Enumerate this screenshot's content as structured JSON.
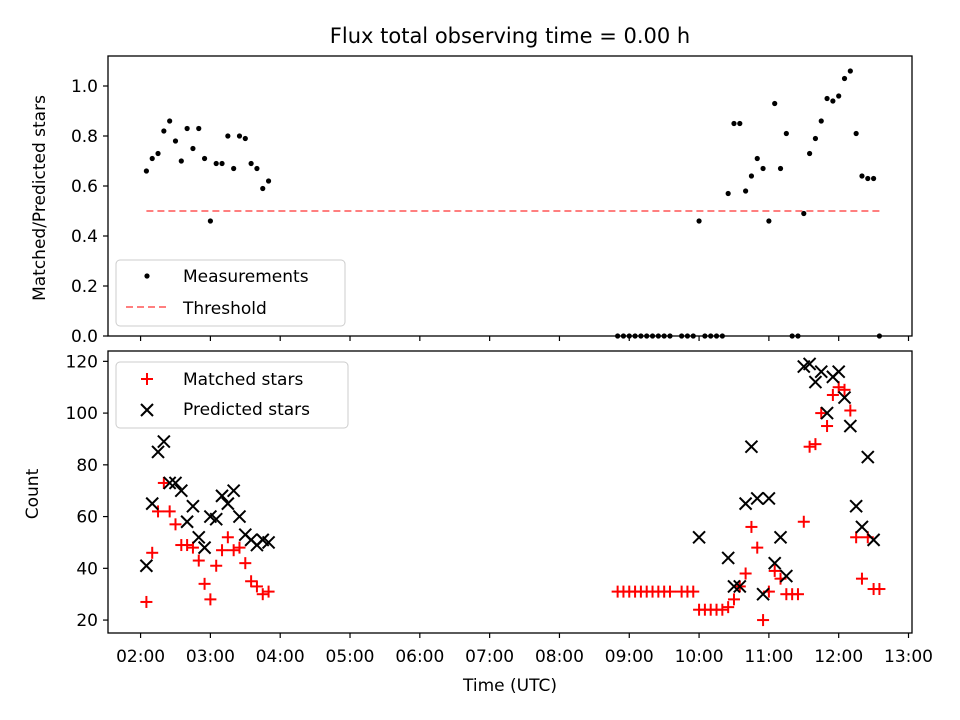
{
  "chart_data": [
    {
      "type": "scatter",
      "title": "Flux total observing time = 0.00 h",
      "xlabel": "",
      "ylabel": "Matched/Predicted stars",
      "ylim": [
        0,
        1.12
      ],
      "yticks": [
        "0.0",
        "0.2",
        "0.4",
        "0.6",
        "0.8",
        "1.0"
      ],
      "legend_placement": "lower-left",
      "series": [
        {
          "name": "Measurements",
          "marker": "dot",
          "color": "#000000",
          "points": [
            [
              "02:05",
              0.66
            ],
            [
              "02:10",
              0.71
            ],
            [
              "02:15",
              0.73
            ],
            [
              "02:20",
              0.82
            ],
            [
              "02:25",
              0.86
            ],
            [
              "02:30",
              0.78
            ],
            [
              "02:35",
              0.7
            ],
            [
              "02:40",
              0.83
            ],
            [
              "02:45",
              0.75
            ],
            [
              "02:50",
              0.83
            ],
            [
              "02:55",
              0.71
            ],
            [
              "03:00",
              0.46
            ],
            [
              "03:05",
              0.69
            ],
            [
              "03:10",
              0.69
            ],
            [
              "03:15",
              0.8
            ],
            [
              "03:20",
              0.67
            ],
            [
              "03:25",
              0.8
            ],
            [
              "03:30",
              0.79
            ],
            [
              "03:35",
              0.69
            ],
            [
              "03:40",
              0.67
            ],
            [
              "03:45",
              0.59
            ],
            [
              "03:50",
              0.62
            ],
            [
              "08:50",
              0.0
            ],
            [
              "08:55",
              0.0
            ],
            [
              "09:00",
              0.0
            ],
            [
              "09:05",
              0.0
            ],
            [
              "09:10",
              0.0
            ],
            [
              "09:15",
              0.0
            ],
            [
              "09:20",
              0.0
            ],
            [
              "09:25",
              0.0
            ],
            [
              "09:30",
              0.0
            ],
            [
              "09:35",
              0.0
            ],
            [
              "09:45",
              0.0
            ],
            [
              "09:50",
              0.0
            ],
            [
              "09:55",
              0.0
            ],
            [
              "10:00",
              0.46
            ],
            [
              "10:05",
              0.0
            ],
            [
              "10:10",
              0.0
            ],
            [
              "10:15",
              0.0
            ],
            [
              "10:20",
              0.0
            ],
            [
              "10:25",
              0.57
            ],
            [
              "10:30",
              0.85
            ],
            [
              "10:35",
              0.85
            ],
            [
              "10:40",
              0.58
            ],
            [
              "10:45",
              0.64
            ],
            [
              "10:50",
              0.71
            ],
            [
              "10:55",
              0.67
            ],
            [
              "11:00",
              0.46
            ],
            [
              "11:05",
              0.93
            ],
            [
              "11:10",
              0.67
            ],
            [
              "11:15",
              0.81
            ],
            [
              "11:20",
              0.0
            ],
            [
              "11:25",
              0.0
            ],
            [
              "11:30",
              0.49
            ],
            [
              "11:35",
              0.73
            ],
            [
              "11:40",
              0.79
            ],
            [
              "11:45",
              0.86
            ],
            [
              "11:50",
              0.95
            ],
            [
              "11:55",
              0.94
            ],
            [
              "12:00",
              0.96
            ],
            [
              "12:05",
              1.03
            ],
            [
              "12:10",
              1.06
            ],
            [
              "12:15",
              0.81
            ],
            [
              "12:20",
              0.64
            ],
            [
              "12:25",
              0.63
            ],
            [
              "12:30",
              0.63
            ],
            [
              "12:35",
              0.0
            ]
          ]
        },
        {
          "name": "Threshold",
          "marker": "dashed-line",
          "color": "#ff7f7f",
          "points": [
            [
              "02:05",
              0.5
            ],
            [
              "12:35",
              0.5
            ]
          ]
        }
      ]
    },
    {
      "type": "scatter",
      "title": "",
      "xlabel": "Time (UTC)",
      "ylabel": "Count",
      "ylim": [
        15,
        124
      ],
      "yticks": [
        "20",
        "40",
        "60",
        "80",
        "100",
        "120"
      ],
      "xticks": [
        "02:00",
        "03:00",
        "04:00",
        "05:00",
        "06:00",
        "07:00",
        "08:00",
        "09:00",
        "10:00",
        "11:00",
        "12:00",
        "13:00"
      ],
      "xlim": [
        "01:32",
        "13:03"
      ],
      "legend_placement": "upper-left",
      "series": [
        {
          "name": "Matched stars",
          "marker": "plus",
          "color": "#ff0000",
          "points": [
            [
              "02:05",
              27
            ],
            [
              "02:10",
              46
            ],
            [
              "02:15",
              62
            ],
            [
              "02:20",
              73
            ],
            [
              "02:25",
              62
            ],
            [
              "02:30",
              57
            ],
            [
              "02:35",
              49
            ],
            [
              "02:40",
              49
            ],
            [
              "02:45",
              48
            ],
            [
              "02:50",
              43
            ],
            [
              "02:55",
              34
            ],
            [
              "03:00",
              28
            ],
            [
              "03:05",
              41
            ],
            [
              "03:10",
              47
            ],
            [
              "03:15",
              52
            ],
            [
              "03:20",
              47
            ],
            [
              "03:25",
              48
            ],
            [
              "03:30",
              42
            ],
            [
              "03:35",
              35
            ],
            [
              "03:40",
              33
            ],
            [
              "03:45",
              30
            ],
            [
              "03:50",
              31
            ],
            [
              "08:50",
              31
            ],
            [
              "08:55",
              31
            ],
            [
              "09:00",
              31
            ],
            [
              "09:05",
              31
            ],
            [
              "09:10",
              31
            ],
            [
              "09:15",
              31
            ],
            [
              "09:20",
              31
            ],
            [
              "09:25",
              31
            ],
            [
              "09:30",
              31
            ],
            [
              "09:35",
              31
            ],
            [
              "09:45",
              31
            ],
            [
              "09:50",
              31
            ],
            [
              "09:55",
              31
            ],
            [
              "10:00",
              24
            ],
            [
              "10:05",
              24
            ],
            [
              "10:10",
              24
            ],
            [
              "10:15",
              24
            ],
            [
              "10:20",
              24
            ],
            [
              "10:25",
              25
            ],
            [
              "10:30",
              28
            ],
            [
              "10:35",
              33
            ],
            [
              "10:40",
              38
            ],
            [
              "10:45",
              56
            ],
            [
              "10:50",
              48
            ],
            [
              "10:55",
              20
            ],
            [
              "11:00",
              31
            ],
            [
              "11:05",
              39
            ],
            [
              "11:10",
              36
            ],
            [
              "11:15",
              30
            ],
            [
              "11:20",
              30
            ],
            [
              "11:25",
              30
            ],
            [
              "11:30",
              58
            ],
            [
              "11:35",
              87
            ],
            [
              "11:40",
              88
            ],
            [
              "11:45",
              100
            ],
            [
              "11:50",
              95
            ],
            [
              "11:55",
              107
            ],
            [
              "12:00",
              110
            ],
            [
              "12:05",
              109
            ],
            [
              "12:10",
              101
            ],
            [
              "12:15",
              52
            ],
            [
              "12:20",
              36
            ],
            [
              "12:25",
              52
            ],
            [
              "12:30",
              32
            ],
            [
              "12:35",
              32
            ]
          ]
        },
        {
          "name": "Predicted stars",
          "marker": "x",
          "color": "#000000",
          "points": [
            [
              "02:05",
              41
            ],
            [
              "02:10",
              65
            ],
            [
              "02:15",
              85
            ],
            [
              "02:20",
              89
            ],
            [
              "02:25",
              73
            ],
            [
              "02:30",
              73
            ],
            [
              "02:35",
              70
            ],
            [
              "02:40",
              58
            ],
            [
              "02:45",
              64
            ],
            [
              "02:50",
              52
            ],
            [
              "02:55",
              48
            ],
            [
              "03:00",
              60
            ],
            [
              "03:05",
              59
            ],
            [
              "03:10",
              68
            ],
            [
              "03:15",
              65
            ],
            [
              "03:20",
              70
            ],
            [
              "03:25",
              60
            ],
            [
              "03:30",
              53
            ],
            [
              "03:35",
              51
            ],
            [
              "03:40",
              49
            ],
            [
              "03:45",
              51
            ],
            [
              "03:50",
              50
            ],
            [
              "10:00",
              52
            ],
            [
              "10:25",
              44
            ],
            [
              "10:30",
              33
            ],
            [
              "10:35",
              33
            ],
            [
              "10:40",
              65
            ],
            [
              "10:45",
              87
            ],
            [
              "10:50",
              67
            ],
            [
              "10:55",
              30
            ],
            [
              "11:00",
              67
            ],
            [
              "11:05",
              42
            ],
            [
              "11:10",
              52
            ],
            [
              "11:15",
              37
            ],
            [
              "11:30",
              118
            ],
            [
              "11:35",
              119
            ],
            [
              "11:40",
              112
            ],
            [
              "11:45",
              116
            ],
            [
              "11:50",
              100
            ],
            [
              "11:55",
              114
            ],
            [
              "12:00",
              116
            ],
            [
              "12:05",
              106
            ],
            [
              "12:10",
              95
            ],
            [
              "12:15",
              64
            ],
            [
              "12:20",
              56
            ],
            [
              "12:25",
              83
            ],
            [
              "12:30",
              51
            ]
          ]
        }
      ]
    }
  ]
}
